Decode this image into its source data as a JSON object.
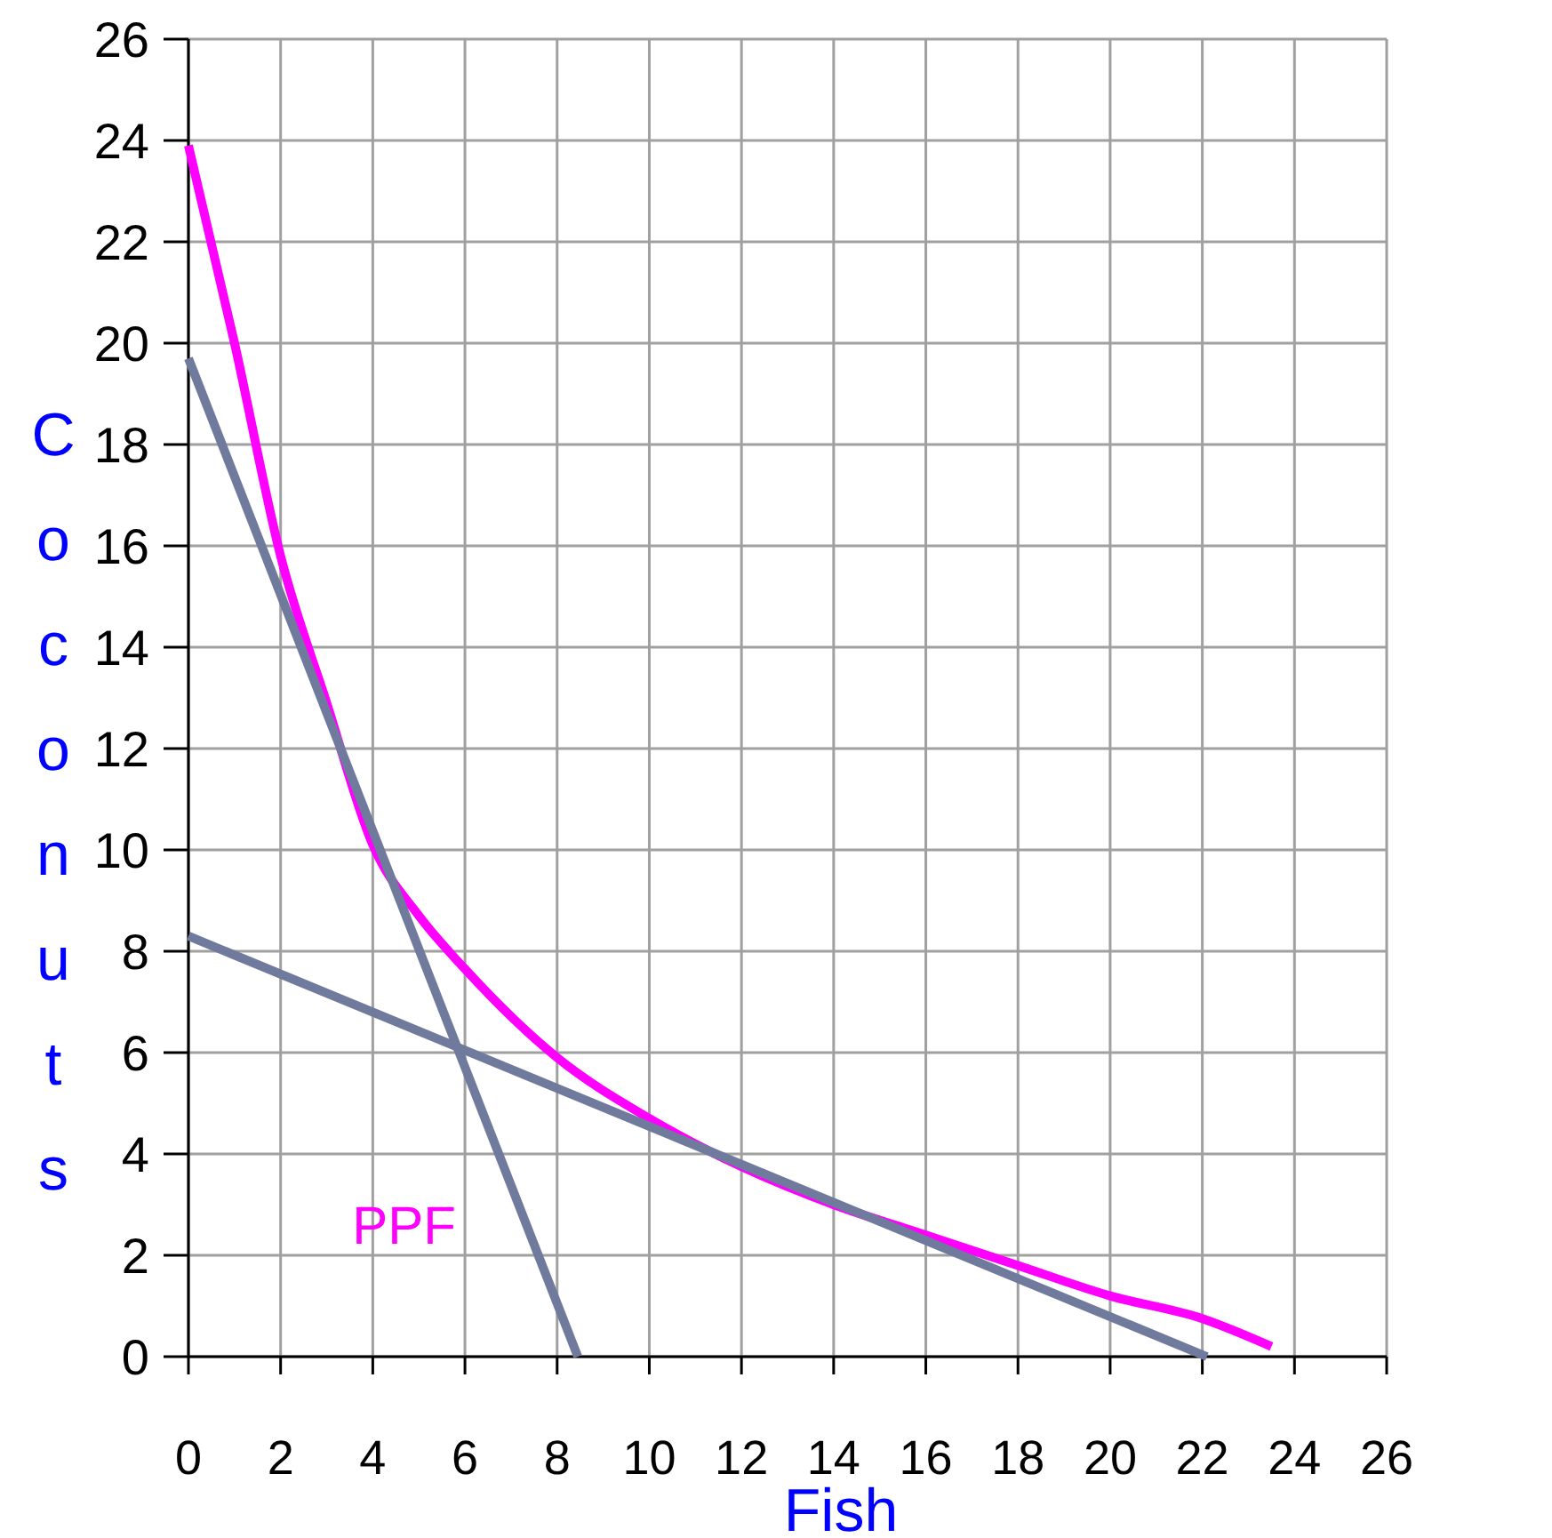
{
  "chart_data": {
    "type": "line",
    "xlabel": "Fish",
    "ylabel": "Coconuts",
    "xlim": [
      0,
      26
    ],
    "ylim": [
      0,
      26
    ],
    "xticks": [
      0,
      2,
      4,
      6,
      8,
      10,
      12,
      14,
      16,
      18,
      20,
      22,
      24,
      26
    ],
    "yticks": [
      0,
      2,
      4,
      6,
      8,
      10,
      12,
      14,
      16,
      18,
      20,
      22,
      24,
      26
    ],
    "grid": true,
    "marker": "none",
    "line_style": "solid",
    "series": [
      {
        "color": "#ff00ff",
        "x": [
          0,
          1,
          2,
          3,
          4,
          5,
          6,
          8,
          10,
          12,
          14,
          16,
          18,
          20,
          22,
          23.5
        ],
        "values": [
          23.9,
          20.0,
          15.8,
          12.9,
          10.1,
          8.7,
          7.65,
          5.9,
          4.7,
          3.75,
          3.0,
          2.4,
          1.8,
          1.2,
          0.75,
          0.2
        ]
      },
      {
        "color": "#707a9c",
        "x": [
          0,
          8.45
        ],
        "values": [
          19.7,
          0
        ]
      },
      {
        "color": "#707a9c",
        "x": [
          0,
          22.1
        ],
        "values": [
          8.3,
          0
        ]
      }
    ],
    "annotations": [
      "PPF"
    ]
  }
}
